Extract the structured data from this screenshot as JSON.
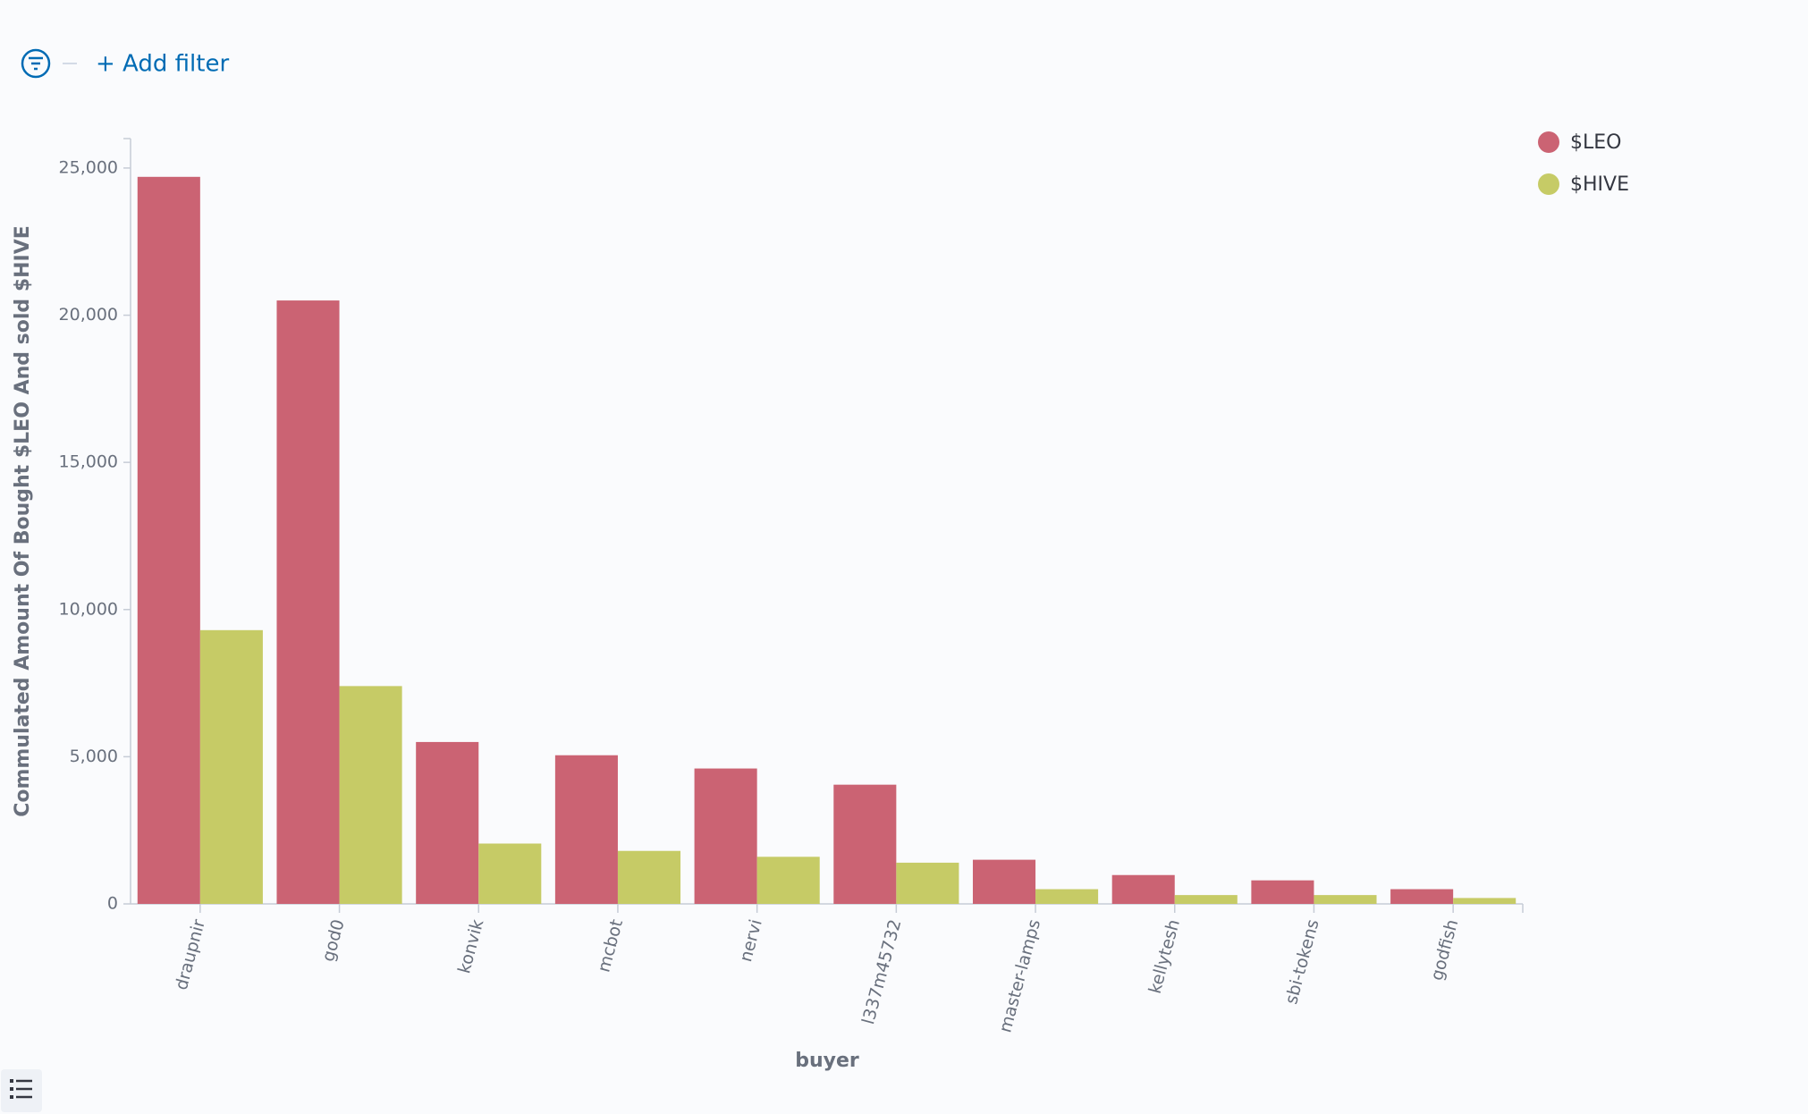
{
  "ui": {
    "add_filter": "+ Add filter"
  },
  "chart_data": {
    "type": "bar",
    "y_label": "Commulated Amount Of Bought $LEO And sold $HIVE",
    "x_label": "buyer",
    "categories": [
      "draupnir",
      "god0",
      "konvik",
      "mcbot",
      "nervi",
      "l337m45732",
      "master-lamps",
      "kellytesh",
      "sbi-tokens",
      "godfish"
    ],
    "series": [
      {
        "name": "$LEO",
        "color": "#cb6373",
        "values": [
          24700,
          20500,
          5500,
          5050,
          4600,
          4050,
          1500,
          980,
          800,
          500
        ]
      },
      {
        "name": "$HIVE",
        "color": "#c6cb66",
        "values": [
          9300,
          7400,
          2050,
          1800,
          1600,
          1400,
          500,
          300,
          300,
          200
        ]
      }
    ],
    "ylim": [
      0,
      26000
    ],
    "yticks": [
      {
        "value": 0,
        "label": "0"
      },
      {
        "value": 5000,
        "label": "5,000"
      },
      {
        "value": 10000,
        "label": "10,000"
      },
      {
        "value": 15000,
        "label": "15,000"
      },
      {
        "value": 20000,
        "label": "20,000"
      },
      {
        "value": 25000,
        "label": "25,000"
      }
    ],
    "legend": "top-right"
  }
}
